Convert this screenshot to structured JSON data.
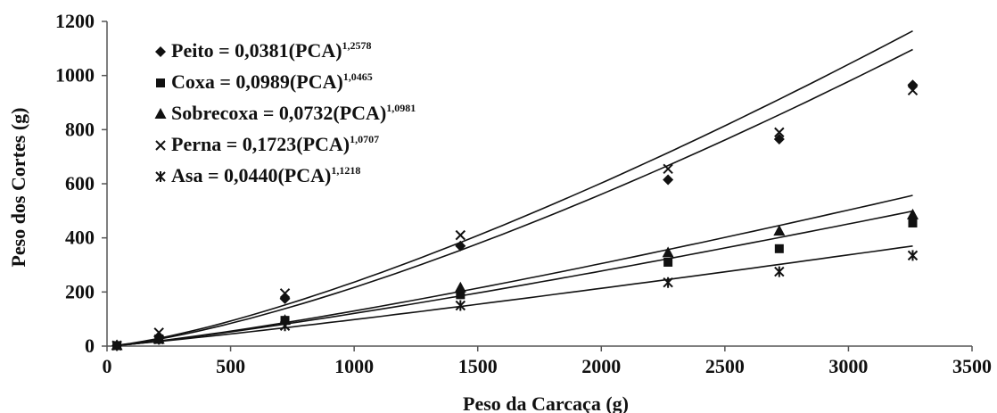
{
  "chart_data": {
    "type": "scatter",
    "xlabel": "Peso da Carcaça (g)",
    "ylabel": "Peso dos Cortes (g)",
    "xlim": [
      0,
      3500
    ],
    "ylim": [
      0,
      1200
    ],
    "xticks": [
      0,
      500,
      1000,
      1500,
      2000,
      2500,
      3000,
      3500
    ],
    "yticks": [
      0,
      200,
      400,
      600,
      800,
      1000,
      1200
    ],
    "grid": false,
    "legend_position": "top-left",
    "fit_lines": "power",
    "series": [
      {
        "name": "Peito",
        "marker": "diamond",
        "equation": {
          "lhs": "Peito",
          "coef": "0,0381",
          "base": "(PCA)",
          "exp": "1,2578"
        },
        "x": [
          40,
          210,
          720,
          1430,
          2270,
          2720,
          3260
        ],
        "y": [
          2,
          35,
          175,
          370,
          615,
          765,
          965
        ]
      },
      {
        "name": "Coxa",
        "marker": "square",
        "equation": {
          "lhs": "Coxa",
          "coef": "0,0989",
          "base": "(PCA)",
          "exp": "1,0465"
        },
        "x": [
          40,
          210,
          720,
          1430,
          2270,
          2720,
          3260
        ],
        "y": [
          2,
          25,
          95,
          190,
          310,
          360,
          455
        ]
      },
      {
        "name": "Sobrecoxa",
        "marker": "triangle",
        "equation": {
          "lhs": "Sobrecoxa",
          "coef": "0,0732",
          "base": "(PCA)",
          "exp": "1,0981"
        },
        "x": [
          40,
          210,
          720,
          1430,
          2270,
          2720,
          3260
        ],
        "y": [
          2,
          25,
          95,
          215,
          345,
          425,
          485
        ]
      },
      {
        "name": "Perna",
        "marker": "x",
        "equation": {
          "lhs": "Perna",
          "coef": "0,1723",
          "base": "(PCA)",
          "exp": "1,0707"
        },
        "x": [
          40,
          210,
          720,
          1430,
          2270,
          2720,
          3260
        ],
        "y": [
          2,
          50,
          195,
          410,
          655,
          790,
          945
        ]
      },
      {
        "name": "Asa",
        "marker": "star",
        "equation": {
          "lhs": "Asa",
          "coef": "0,0440",
          "base": "(PCA)",
          "exp": "1,1218"
        },
        "x": [
          40,
          210,
          720,
          1430,
          2270,
          2720,
          3260
        ],
        "y": [
          2,
          25,
          75,
          150,
          235,
          275,
          335
        ]
      }
    ],
    "colors": {
      "marker": "#111111",
      "line": "#111111",
      "axis": "#555555"
    }
  }
}
